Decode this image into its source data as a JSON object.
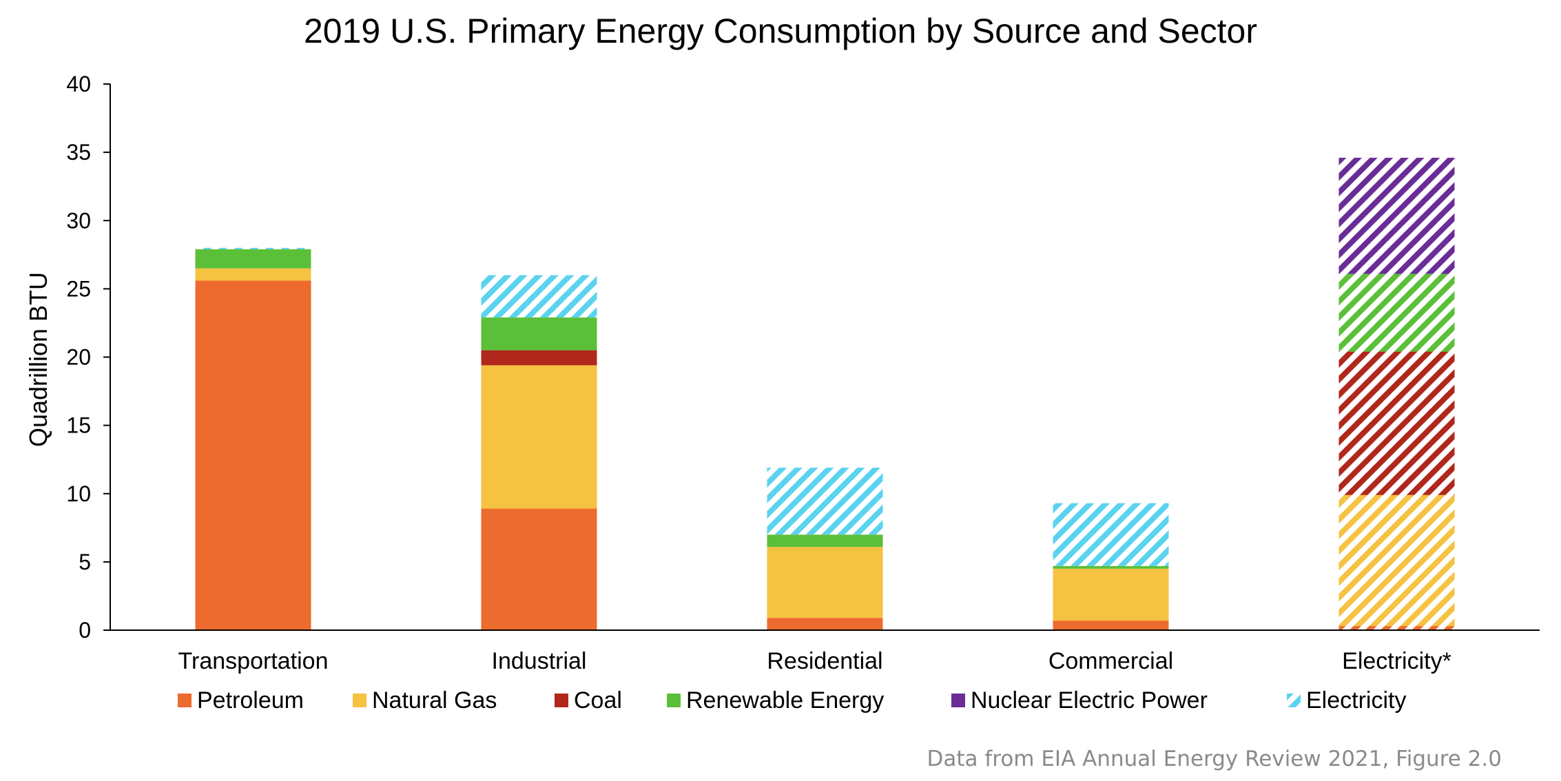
{
  "chart_data": {
    "type": "bar",
    "stacked": true,
    "title": "2019 U.S. Primary Energy Consumption by Source and Sector",
    "ylabel": "Quadrillion BTU",
    "xlabel": "",
    "ylim": [
      0,
      40
    ],
    "yticks": [
      0,
      5,
      10,
      15,
      20,
      25,
      30,
      35,
      40
    ],
    "grid": false,
    "legend_position": "bottom",
    "categories": [
      "Transportation",
      "Industrial",
      "Residential",
      "Commercial",
      "Electricity*"
    ],
    "hatched_categories": [
      "Electricity*"
    ],
    "series": [
      {
        "name": "Petroleum",
        "color": "#ED6B2E",
        "values": [
          25.6,
          8.9,
          0.9,
          0.7,
          0.3
        ],
        "hatched": false
      },
      {
        "name": "Natural Gas",
        "color": "#F5C242",
        "values": [
          0.9,
          10.5,
          5.2,
          3.8,
          9.6
        ],
        "hatched": false
      },
      {
        "name": "Coal",
        "color": "#B0271B",
        "values": [
          0.0,
          1.1,
          0.0,
          0.0,
          10.5
        ],
        "hatched": false
      },
      {
        "name": "Renewable Energy",
        "color": "#5CBF3A",
        "values": [
          1.4,
          2.4,
          0.9,
          0.2,
          5.7
        ],
        "hatched": false
      },
      {
        "name": "Nuclear Electric Power",
        "color": "#6A2D96",
        "values": [
          0.0,
          0.0,
          0.0,
          0.0,
          8.5
        ],
        "hatched": false
      },
      {
        "name": "Electricity",
        "color": "#5BD3EE",
        "values": [
          0.1,
          3.1,
          4.9,
          4.6,
          0.0
        ],
        "hatched": true
      }
    ],
    "source_note": "Data from EIA Annual Energy Review 2021, Figure 2.0"
  }
}
